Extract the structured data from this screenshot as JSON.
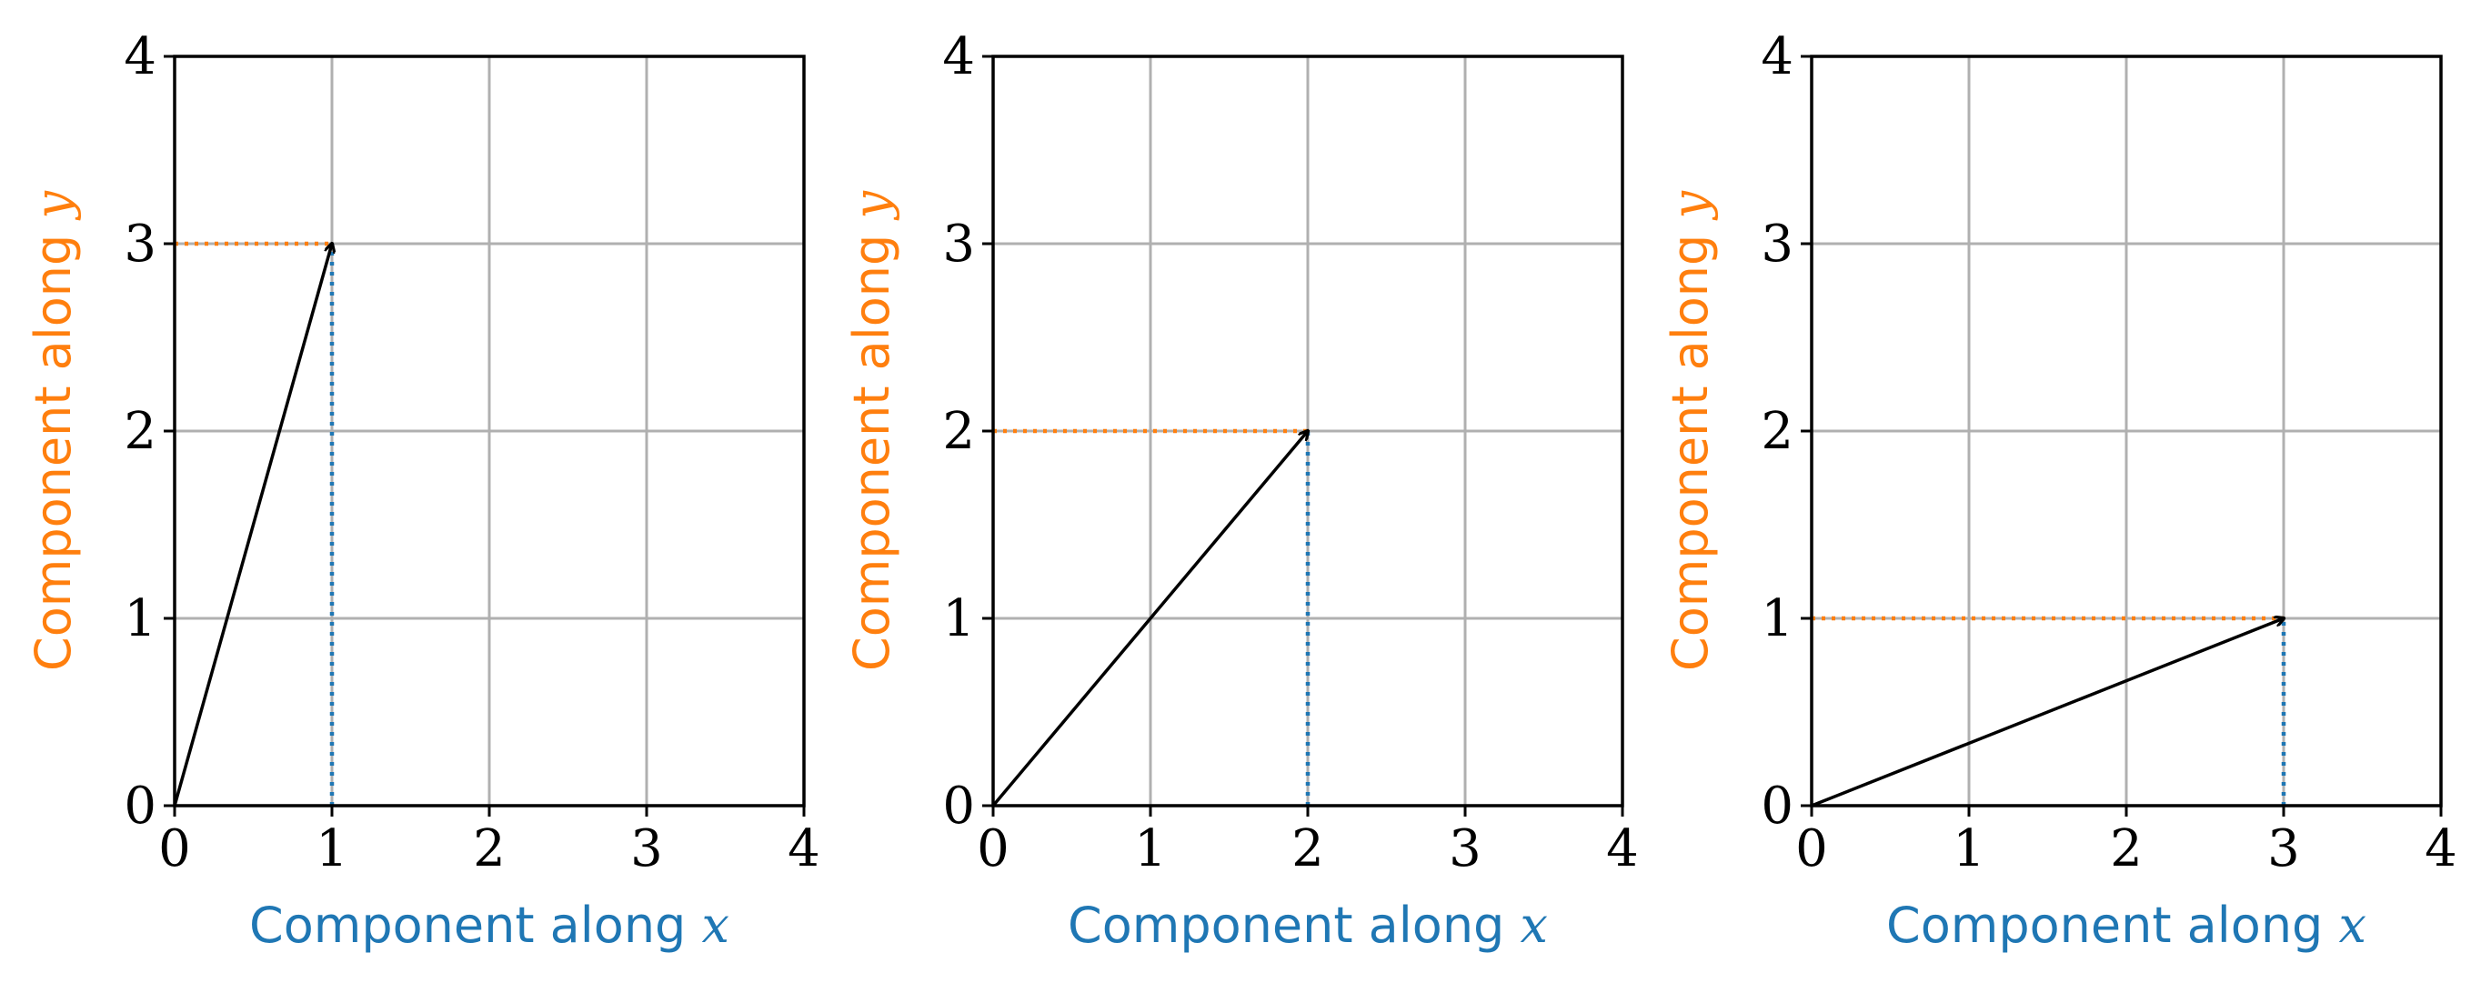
{
  "colors": {
    "x_component": "#1f77b4",
    "y_component": "#ff7f0e",
    "vector": "#000000",
    "grid": "#b0b0b0",
    "frame": "#000000"
  },
  "chart_data": [
    {
      "type": "line",
      "xlabel": "Component along x",
      "ylabel": "Component along y",
      "xlabel_text": "Component along ",
      "xlabel_var": "x",
      "ylabel_text": "Component along ",
      "ylabel_var": "y",
      "xlim": [
        0,
        4
      ],
      "ylim": [
        0,
        4
      ],
      "xticks": [
        "0",
        "1",
        "2",
        "3",
        "4"
      ],
      "yticks": [
        "0",
        "1",
        "2",
        "3",
        "4"
      ],
      "grid": true,
      "vector": {
        "x": 1,
        "y": 3
      }
    },
    {
      "type": "line",
      "xlabel": "Component along x",
      "ylabel": "Component along y",
      "xlabel_text": "Component along ",
      "xlabel_var": "x",
      "ylabel_text": "Component along ",
      "ylabel_var": "y",
      "xlim": [
        0,
        4
      ],
      "ylim": [
        0,
        4
      ],
      "xticks": [
        "0",
        "1",
        "2",
        "3",
        "4"
      ],
      "yticks": [
        "0",
        "1",
        "2",
        "3",
        "4"
      ],
      "grid": true,
      "vector": {
        "x": 2,
        "y": 2
      }
    },
    {
      "type": "line",
      "xlabel": "Component along x",
      "ylabel": "Component along y",
      "xlabel_text": "Component along ",
      "xlabel_var": "x",
      "ylabel_text": "Component along ",
      "ylabel_var": "y",
      "xlim": [
        0,
        4
      ],
      "ylim": [
        0,
        4
      ],
      "xticks": [
        "0",
        "1",
        "2",
        "3",
        "4"
      ],
      "yticks": [
        "0",
        "1",
        "2",
        "3",
        "4"
      ],
      "grid": true,
      "vector": {
        "x": 3,
        "y": 1
      }
    }
  ]
}
